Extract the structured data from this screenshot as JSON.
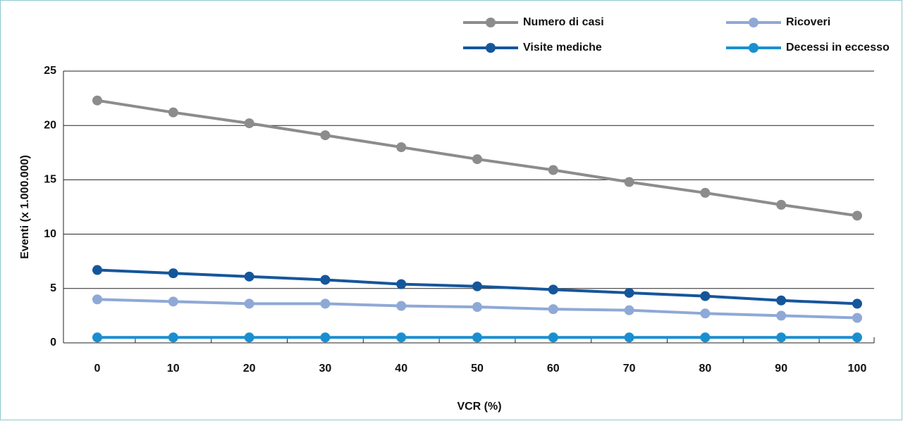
{
  "chart_data": {
    "type": "line",
    "x_label": "VCR (%)",
    "y_label": "Eventi (x 1.000.000)",
    "categories": [
      "0",
      "10",
      "20",
      "30",
      "40",
      "50",
      "60",
      "70",
      "80",
      "90",
      "100"
    ],
    "series": [
      {
        "name": "Numero di casi",
        "color": "#8c8c8c",
        "values": [
          22.3,
          21.2,
          20.2,
          19.1,
          18.0,
          16.9,
          15.9,
          14.8,
          13.8,
          12.7,
          11.7
        ]
      },
      {
        "name": "Ricoveri",
        "color": "#8fa9d6",
        "values": [
          4.0,
          3.8,
          3.6,
          3.6,
          3.4,
          3.3,
          3.1,
          3.0,
          2.7,
          2.5,
          2.3
        ]
      },
      {
        "name": "Visite mediche",
        "color": "#15569b",
        "values": [
          6.7,
          6.4,
          6.1,
          5.8,
          5.4,
          5.2,
          4.9,
          4.6,
          4.3,
          3.9,
          3.6
        ]
      },
      {
        "name": "Decessi in eccesso",
        "color": "#1a8fd0",
        "values": [
          0.5,
          0.5,
          0.5,
          0.5,
          0.5,
          0.5,
          0.5,
          0.5,
          0.5,
          0.5,
          0.5
        ]
      }
    ],
    "ylim": [
      0,
      25
    ],
    "yticks": [
      0,
      5,
      10,
      15,
      20,
      25
    ],
    "grid": true
  }
}
